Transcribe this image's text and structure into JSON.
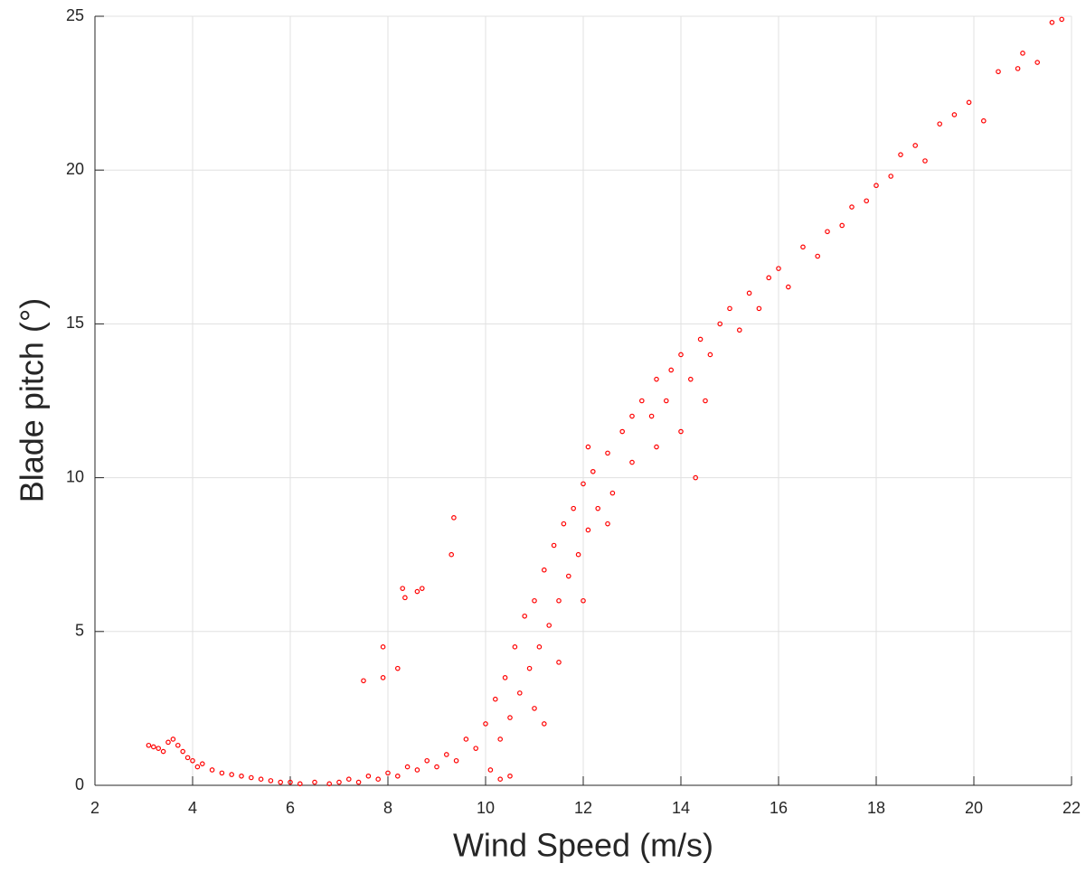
{
  "chart_data": {
    "type": "scatter",
    "x_label": "Wind Speed (m/s)",
    "y_label": "Blade pitch (°)",
    "color": "#ff0000",
    "grid": true,
    "xlim": [
      2,
      22
    ],
    "xticks": [
      2,
      4,
      6,
      8,
      10,
      12,
      14,
      16,
      18,
      20,
      22
    ],
    "ylim": [
      0,
      25
    ],
    "yticks": [
      0,
      5,
      10,
      15,
      20,
      25
    ],
    "x": [
      3.1,
      3.2,
      3.3,
      3.4,
      3.5,
      3.6,
      3.7,
      3.8,
      3.9,
      4.0,
      4.1,
      4.2,
      4.4,
      4.6,
      4.8,
      5.0,
      5.2,
      5.4,
      5.6,
      5.8,
      6.0,
      6.2,
      6.5,
      6.8,
      7.0,
      7.2,
      7.4,
      7.6,
      7.8,
      8.0,
      8.2,
      8.4,
      8.6,
      8.8,
      9.0,
      9.2,
      9.4,
      9.6,
      9.8,
      10.0,
      10.1,
      10.2,
      10.3,
      10.4,
      10.5,
      10.6,
      10.7,
      10.8,
      10.9,
      11.0,
      11.1,
      11.2,
      11.3,
      11.4,
      11.5,
      11.6,
      11.7,
      11.8,
      11.9,
      12.0,
      12.1,
      12.2,
      12.3,
      12.5,
      12.6,
      12.8,
      13.0,
      13.0,
      13.2,
      13.4,
      13.5,
      13.7,
      13.8,
      14.0,
      14.2,
      14.4,
      14.6,
      14.8,
      15.0,
      15.2,
      15.4,
      15.6,
      15.8,
      16.0,
      16.2,
      16.5,
      16.8,
      17.0,
      17.3,
      17.5,
      17.8,
      18.0,
      18.3,
      18.5,
      18.8,
      19.0,
      19.3,
      19.6,
      19.9,
      20.2,
      20.5,
      20.9,
      21.0,
      21.3,
      21.6,
      21.8,
      8.3,
      8.35,
      8.6,
      8.7,
      9.35,
      9.3,
      7.9,
      8.2,
      7.5,
      7.9,
      14.3,
      12.1,
      11.0,
      11.5,
      12.0,
      11.2,
      10.5,
      10.3,
      12.5,
      13.5,
      14.0,
      14.5
    ],
    "y": [
      1.3,
      1.25,
      1.2,
      1.1,
      1.4,
      1.5,
      1.3,
      1.1,
      0.9,
      0.8,
      0.6,
      0.7,
      0.5,
      0.4,
      0.35,
      0.3,
      0.25,
      0.2,
      0.15,
      0.1,
      0.1,
      0.05,
      0.1,
      0.05,
      0.1,
      0.2,
      0.1,
      0.3,
      0.2,
      0.4,
      0.3,
      0.6,
      0.5,
      0.8,
      0.6,
      1.0,
      0.8,
      1.5,
      1.2,
      2.0,
      0.5,
      2.8,
      1.5,
      3.5,
      2.2,
      4.5,
      3.0,
      5.5,
      3.8,
      6.0,
      4.5,
      7.0,
      5.2,
      7.8,
      6.0,
      8.5,
      6.8,
      9.0,
      7.5,
      9.8,
      8.3,
      10.2,
      9.0,
      10.8,
      9.5,
      11.5,
      12.0,
      10.5,
      12.5,
      12.0,
      13.2,
      12.5,
      13.5,
      14.0,
      13.2,
      14.5,
      14.0,
      15.0,
      15.5,
      14.8,
      16.0,
      15.5,
      16.5,
      16.8,
      16.2,
      17.5,
      17.2,
      18.0,
      18.2,
      18.8,
      19.0,
      19.5,
      19.8,
      20.5,
      20.8,
      20.3,
      21.5,
      21.8,
      22.2,
      21.6,
      23.2,
      23.3,
      23.8,
      23.5,
      24.8,
      24.9,
      6.4,
      6.1,
      6.3,
      6.4,
      8.7,
      7.5,
      4.5,
      3.8,
      3.4,
      3.5,
      10.0,
      11.0,
      2.5,
      4.0,
      6.0,
      2.0,
      0.3,
      0.2,
      8.5,
      11.0,
      11.5,
      12.5
    ]
  }
}
